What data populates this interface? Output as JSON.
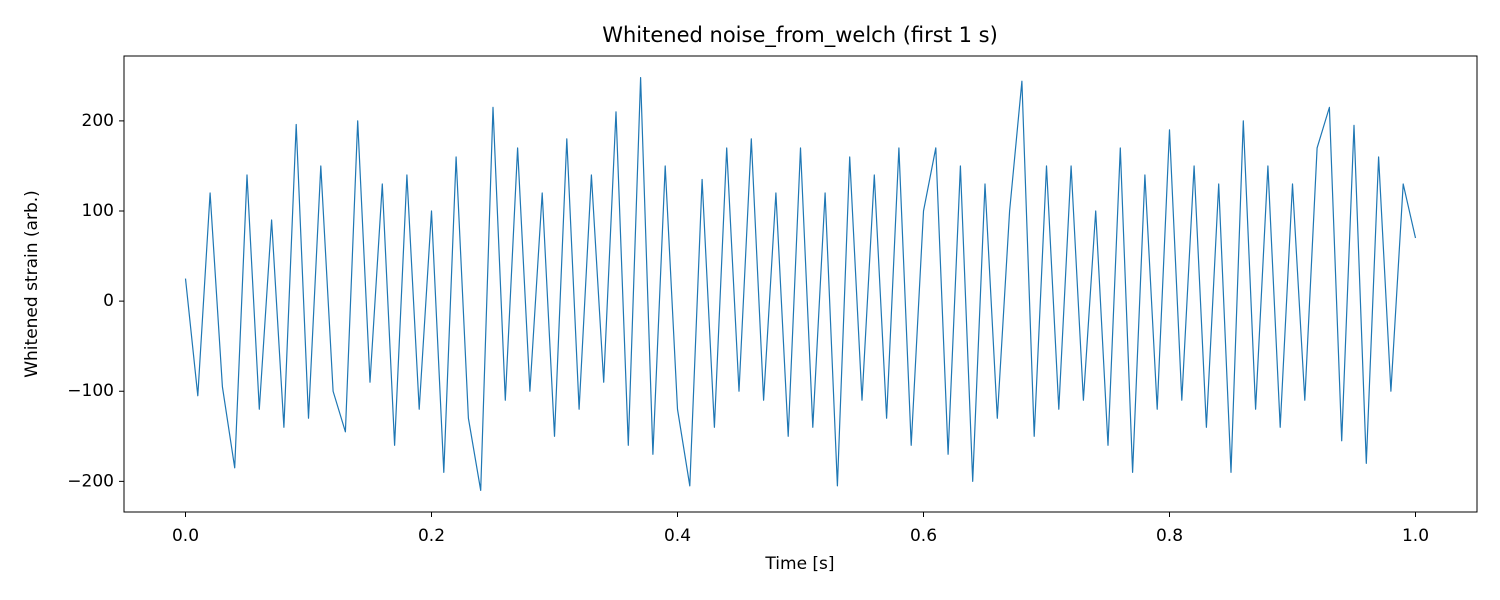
{
  "chart_data": {
    "type": "line",
    "title": "Whitened noise_from_welch (first 1 s)",
    "xlabel": "Time [s]",
    "ylabel": "Whitened strain (arb.)",
    "x": [
      0,
      0.01,
      0.02,
      0.03,
      0.04,
      0.05,
      0.06,
      0.07,
      0.08,
      0.09,
      0.1,
      0.11,
      0.12,
      0.13,
      0.14,
      0.15,
      0.16,
      0.17,
      0.18,
      0.19,
      0.2,
      0.21,
      0.22,
      0.23,
      0.24,
      0.25,
      0.26,
      0.27,
      0.28,
      0.29,
      0.3,
      0.31,
      0.32,
      0.33,
      0.34,
      0.35,
      0.36,
      0.37,
      0.38,
      0.39,
      0.4,
      0.41,
      0.42,
      0.43,
      0.44,
      0.45,
      0.46,
      0.47,
      0.48,
      0.49,
      0.5,
      0.51,
      0.52,
      0.53,
      0.54,
      0.55,
      0.56,
      0.57,
      0.58,
      0.59,
      0.6,
      0.61,
      0.62,
      0.63,
      0.64,
      0.65,
      0.66,
      0.67,
      0.68,
      0.69,
      0.7,
      0.71,
      0.72,
      0.73,
      0.74,
      0.75,
      0.76,
      0.77,
      0.78,
      0.79,
      0.8,
      0.81,
      0.82,
      0.83,
      0.84,
      0.85,
      0.86,
      0.87,
      0.88,
      0.89,
      0.9,
      0.91,
      0.92,
      0.93,
      0.94,
      0.95,
      0.96,
      0.97,
      0.98,
      0.99,
      1
    ],
    "series": [
      {
        "name": "whitened",
        "color": "#1f77b4",
        "values": [
          25,
          -105,
          120,
          -95,
          -185,
          140,
          -120,
          90,
          -140,
          196,
          -130,
          150,
          -100,
          -145,
          200,
          -90,
          130,
          -160,
          140,
          -120,
          100,
          -190,
          160,
          -130,
          -210,
          215,
          -110,
          170,
          -100,
          120,
          -150,
          180,
          -120,
          140,
          -90,
          210,
          -160,
          248,
          -170,
          150,
          -120,
          -205,
          135,
          -140,
          170,
          -100,
          180,
          -110,
          120,
          -150,
          170,
          -140,
          120,
          -205,
          160,
          -110,
          140,
          -130,
          170,
          -160,
          100,
          170,
          -170,
          150,
          -200,
          130,
          -130,
          100,
          244,
          -150,
          150,
          -120,
          150,
          -110,
          100,
          -160,
          170,
          -190,
          140,
          -120,
          190,
          -110,
          150,
          -140,
          130,
          -190,
          200,
          -120,
          150,
          -140,
          130,
          -110,
          170,
          215,
          -155,
          195,
          -180,
          160,
          -100,
          130,
          70
        ]
      }
    ],
    "xlim": [
      -0.05,
      1.05
    ],
    "ylim": [
      -234,
      272
    ],
    "xticks": [
      {
        "value": 0,
        "label": "0.0"
      },
      0.2,
      0.4,
      0.6,
      0.8,
      {
        "value": 1,
        "label": "1.0"
      }
    ],
    "yticks": [
      {
        "value": -200,
        "label": "−200"
      },
      {
        "value": -100,
        "label": "−100"
      },
      0,
      100,
      200
    ]
  }
}
